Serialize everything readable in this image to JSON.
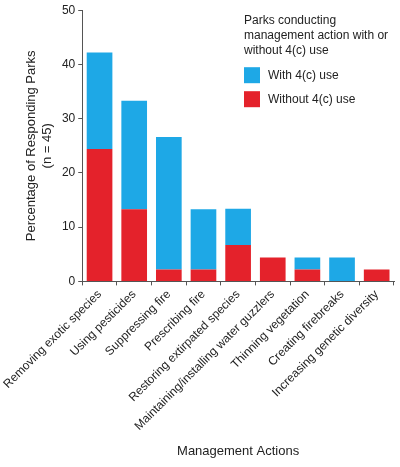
{
  "chart_data": {
    "type": "bar",
    "stacked": true,
    "x_label": "Management Actions",
    "y_label": [
      "Percentage of Responding Parks",
      "(n = 45)"
    ],
    "legend_title": "Parks conducting management action with or without 4(c) use",
    "legend": "upper right",
    "grid": false,
    "categories": [
      "Removing exotic species",
      "Using pesticides",
      "Suppressing fire",
      "Prescribing fire",
      "Restoring extirpated species",
      "Maintaining/installing water guzzlers",
      "Thinning vegetation",
      "Creating firebreaks",
      "Increasing genetic diversity"
    ],
    "series": [
      {
        "name": "With 4(c) use",
        "color": "#1ea8e6",
        "values": [
          17.8,
          20.0,
          24.4,
          11.1,
          6.7,
          0,
          2.2,
          4.4,
          0
        ]
      },
      {
        "name": "Without 4(c) use",
        "color": "#e4222b",
        "values": [
          24.4,
          13.3,
          2.2,
          2.2,
          6.7,
          4.4,
          2.2,
          0,
          2.2
        ]
      }
    ],
    "ylim": [
      0,
      50
    ],
    "yticks": [
      0,
      10,
      20,
      30,
      40,
      50
    ]
  }
}
